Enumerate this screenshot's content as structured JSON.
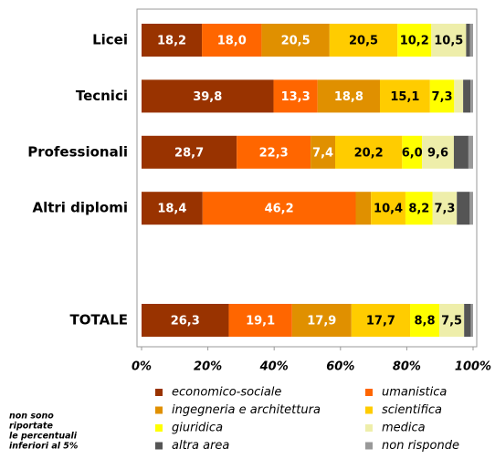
{
  "chart_data": {
    "type": "stacked_barh",
    "categories": [
      "Licei",
      "Tecnici",
      "Professionali",
      "Altri diplomi",
      null,
      "TOTALE"
    ],
    "series": [
      {
        "name": "economico-sociale",
        "color": "#993300",
        "values": [
          18.2,
          39.8,
          28.7,
          18.4,
          null,
          26.3
        ],
        "value_labels": [
          "18,2",
          "39,8",
          "28,7",
          "18,4",
          null,
          "26,3"
        ]
      },
      {
        "name": "umanistica",
        "color": "#ff6600",
        "values": [
          18.0,
          13.3,
          22.3,
          46.2,
          null,
          19.1
        ],
        "value_labels": [
          "18,0",
          "13,3",
          "22,3",
          "46,2",
          null,
          "19,1"
        ]
      },
      {
        "name": "ingegneria e architettura",
        "color": "#e09000",
        "values": [
          20.5,
          18.8,
          7.4,
          4.6,
          null,
          17.9
        ],
        "value_labels": [
          "20,5",
          "18,8",
          "7,4",
          null,
          null,
          "17,9"
        ]
      },
      {
        "name": "scientifica",
        "color": "#ffcc00",
        "values": [
          20.5,
          15.1,
          20.2,
          10.4,
          null,
          17.7
        ],
        "value_labels": [
          "20,5",
          "15,1",
          "20,2",
          "10,4",
          null,
          "17,7"
        ]
      },
      {
        "name": "giuridica",
        "color": "#ffff00",
        "values": [
          10.2,
          7.3,
          6.0,
          8.2,
          null,
          8.8
        ],
        "value_labels": [
          "10,2",
          "7,3",
          "6,0",
          "8,2",
          null,
          "8,8"
        ]
      },
      {
        "name": "medica",
        "color": "#eeeeaa",
        "values": [
          10.5,
          2.7,
          9.6,
          7.3,
          null,
          7.5
        ],
        "value_labels": [
          "10,5",
          null,
          "9,6",
          "7,3",
          null,
          "7,5"
        ]
      },
      {
        "name": "altra area",
        "color": "#555555",
        "values": [
          1.2,
          2.2,
          4.4,
          3.9,
          null,
          2.0
        ],
        "value_labels": [
          null,
          null,
          null,
          null,
          null,
          null
        ]
      },
      {
        "name": "non risponde",
        "color": "#999999",
        "values": [
          0.9,
          0.8,
          1.4,
          1.0,
          null,
          0.7
        ],
        "value_labels": [
          null,
          null,
          null,
          null,
          null,
          null
        ]
      }
    ],
    "xlim": [
      0,
      100
    ],
    "xticks": [
      {
        "value": 0,
        "label": "0%"
      },
      {
        "value": 20,
        "label": "20%"
      },
      {
        "value": 40,
        "label": "40%"
      },
      {
        "value": 60,
        "label": "60%"
      },
      {
        "value": 80,
        "label": "80%"
      },
      {
        "value": 100,
        "label": "100%"
      }
    ],
    "annotation": [
      "non sono",
      "riportate",
      "le percentuali",
      "inferiori al 5%"
    ]
  }
}
